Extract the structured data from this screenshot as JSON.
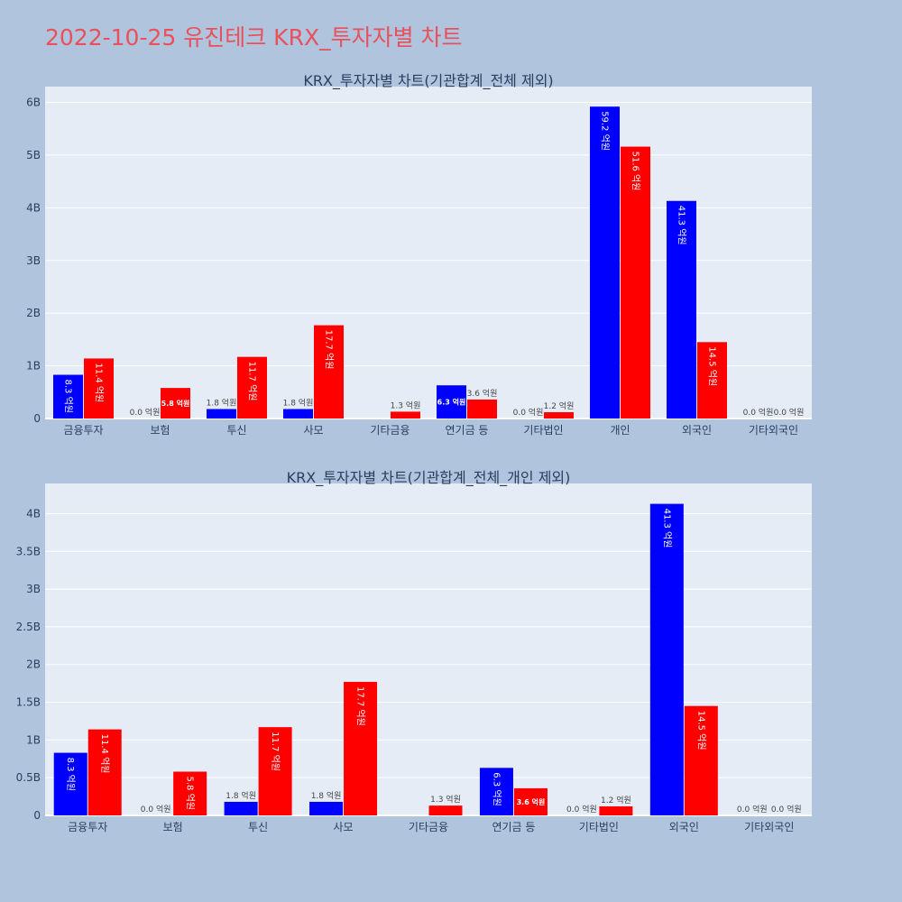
{
  "page": {
    "title": "2022-10-25 유진테크 KRX_투자자별 차트"
  },
  "colors": {
    "background": "#b0c4de",
    "plot_background": "#e5ecf6",
    "grid": "#ffffff",
    "title": "#e8515b",
    "text": "#2a3f5f",
    "series_a": "#0000ff",
    "series_b": "#ff0000"
  },
  "chart_data": [
    {
      "type": "bar",
      "title": "KRX_투자자별 차트(기관합계_전체 제외)",
      "categories": [
        "금융투자",
        "보험",
        "투신",
        "사모",
        "기타금융",
        "연기금 등",
        "기타법인",
        "개인",
        "외국인",
        "기타외국인"
      ],
      "series": [
        {
          "color": "#0000ff",
          "values": [
            0.83,
            0.0,
            0.18,
            0.18,
            0.0,
            0.63,
            0.0,
            5.92,
            4.13,
            0.0
          ],
          "labels": [
            "8.3 억원",
            "0.0 억원",
            "1.8 억원",
            "1.8 억원",
            "",
            "6.3 억원",
            "0.0 억원",
            "59.2 억원",
            "41.3 억원",
            "0.0 억원"
          ]
        },
        {
          "color": "#ff0000",
          "values": [
            1.14,
            0.58,
            1.17,
            1.77,
            0.13,
            0.36,
            0.12,
            5.16,
            1.45,
            0.0
          ],
          "labels": [
            "11.4 억원",
            "5.8 억원",
            "11.7 억원",
            "17.7 억원",
            "1.3 억원",
            "3.6 억원",
            "1.2 억원",
            "51.6 억원",
            "14.5 억원",
            "0.0 억원"
          ]
        }
      ],
      "ylim": [
        0,
        6.3
      ],
      "yticks": [
        0,
        1,
        2,
        3,
        4,
        5,
        6
      ],
      "ytick_labels": [
        "0",
        "1B",
        "2B",
        "3B",
        "4B",
        "5B",
        "6B"
      ],
      "grid": true,
      "legend": "none"
    },
    {
      "type": "bar",
      "title": "KRX_투자자별 차트(기관합계_전체_개인 제외)",
      "categories": [
        "금융투자",
        "보험",
        "투신",
        "사모",
        "기타금융",
        "연기금 등",
        "기타법인",
        "외국인",
        "기타외국인"
      ],
      "series": [
        {
          "color": "#0000ff",
          "values": [
            0.83,
            0.0,
            0.18,
            0.18,
            0.0,
            0.63,
            0.0,
            4.13,
            0.0
          ],
          "labels": [
            "8.3 억원",
            "0.0 억원",
            "1.8 억원",
            "1.8 억원",
            "",
            "6.3 억원",
            "0.0 억원",
            "41.3 억원",
            "0.0 억원"
          ]
        },
        {
          "color": "#ff0000",
          "values": [
            1.14,
            0.58,
            1.17,
            1.77,
            0.13,
            0.36,
            0.12,
            1.45,
            0.0
          ],
          "labels": [
            "11.4 억원",
            "5.8 억원",
            "11.7 억원",
            "17.7 억원",
            "1.3 억원",
            "3.6 억원",
            "1.2 억원",
            "14.5 억원",
            "0.0 억원"
          ]
        }
      ],
      "ylim": [
        0,
        4.4
      ],
      "yticks": [
        0,
        0.5,
        1,
        1.5,
        2,
        2.5,
        3,
        3.5,
        4
      ],
      "ytick_labels": [
        "0",
        "0.5B",
        "1B",
        "1.5B",
        "2B",
        "2.5B",
        "3B",
        "3.5B",
        "4B"
      ],
      "grid": true,
      "legend": "none"
    }
  ]
}
